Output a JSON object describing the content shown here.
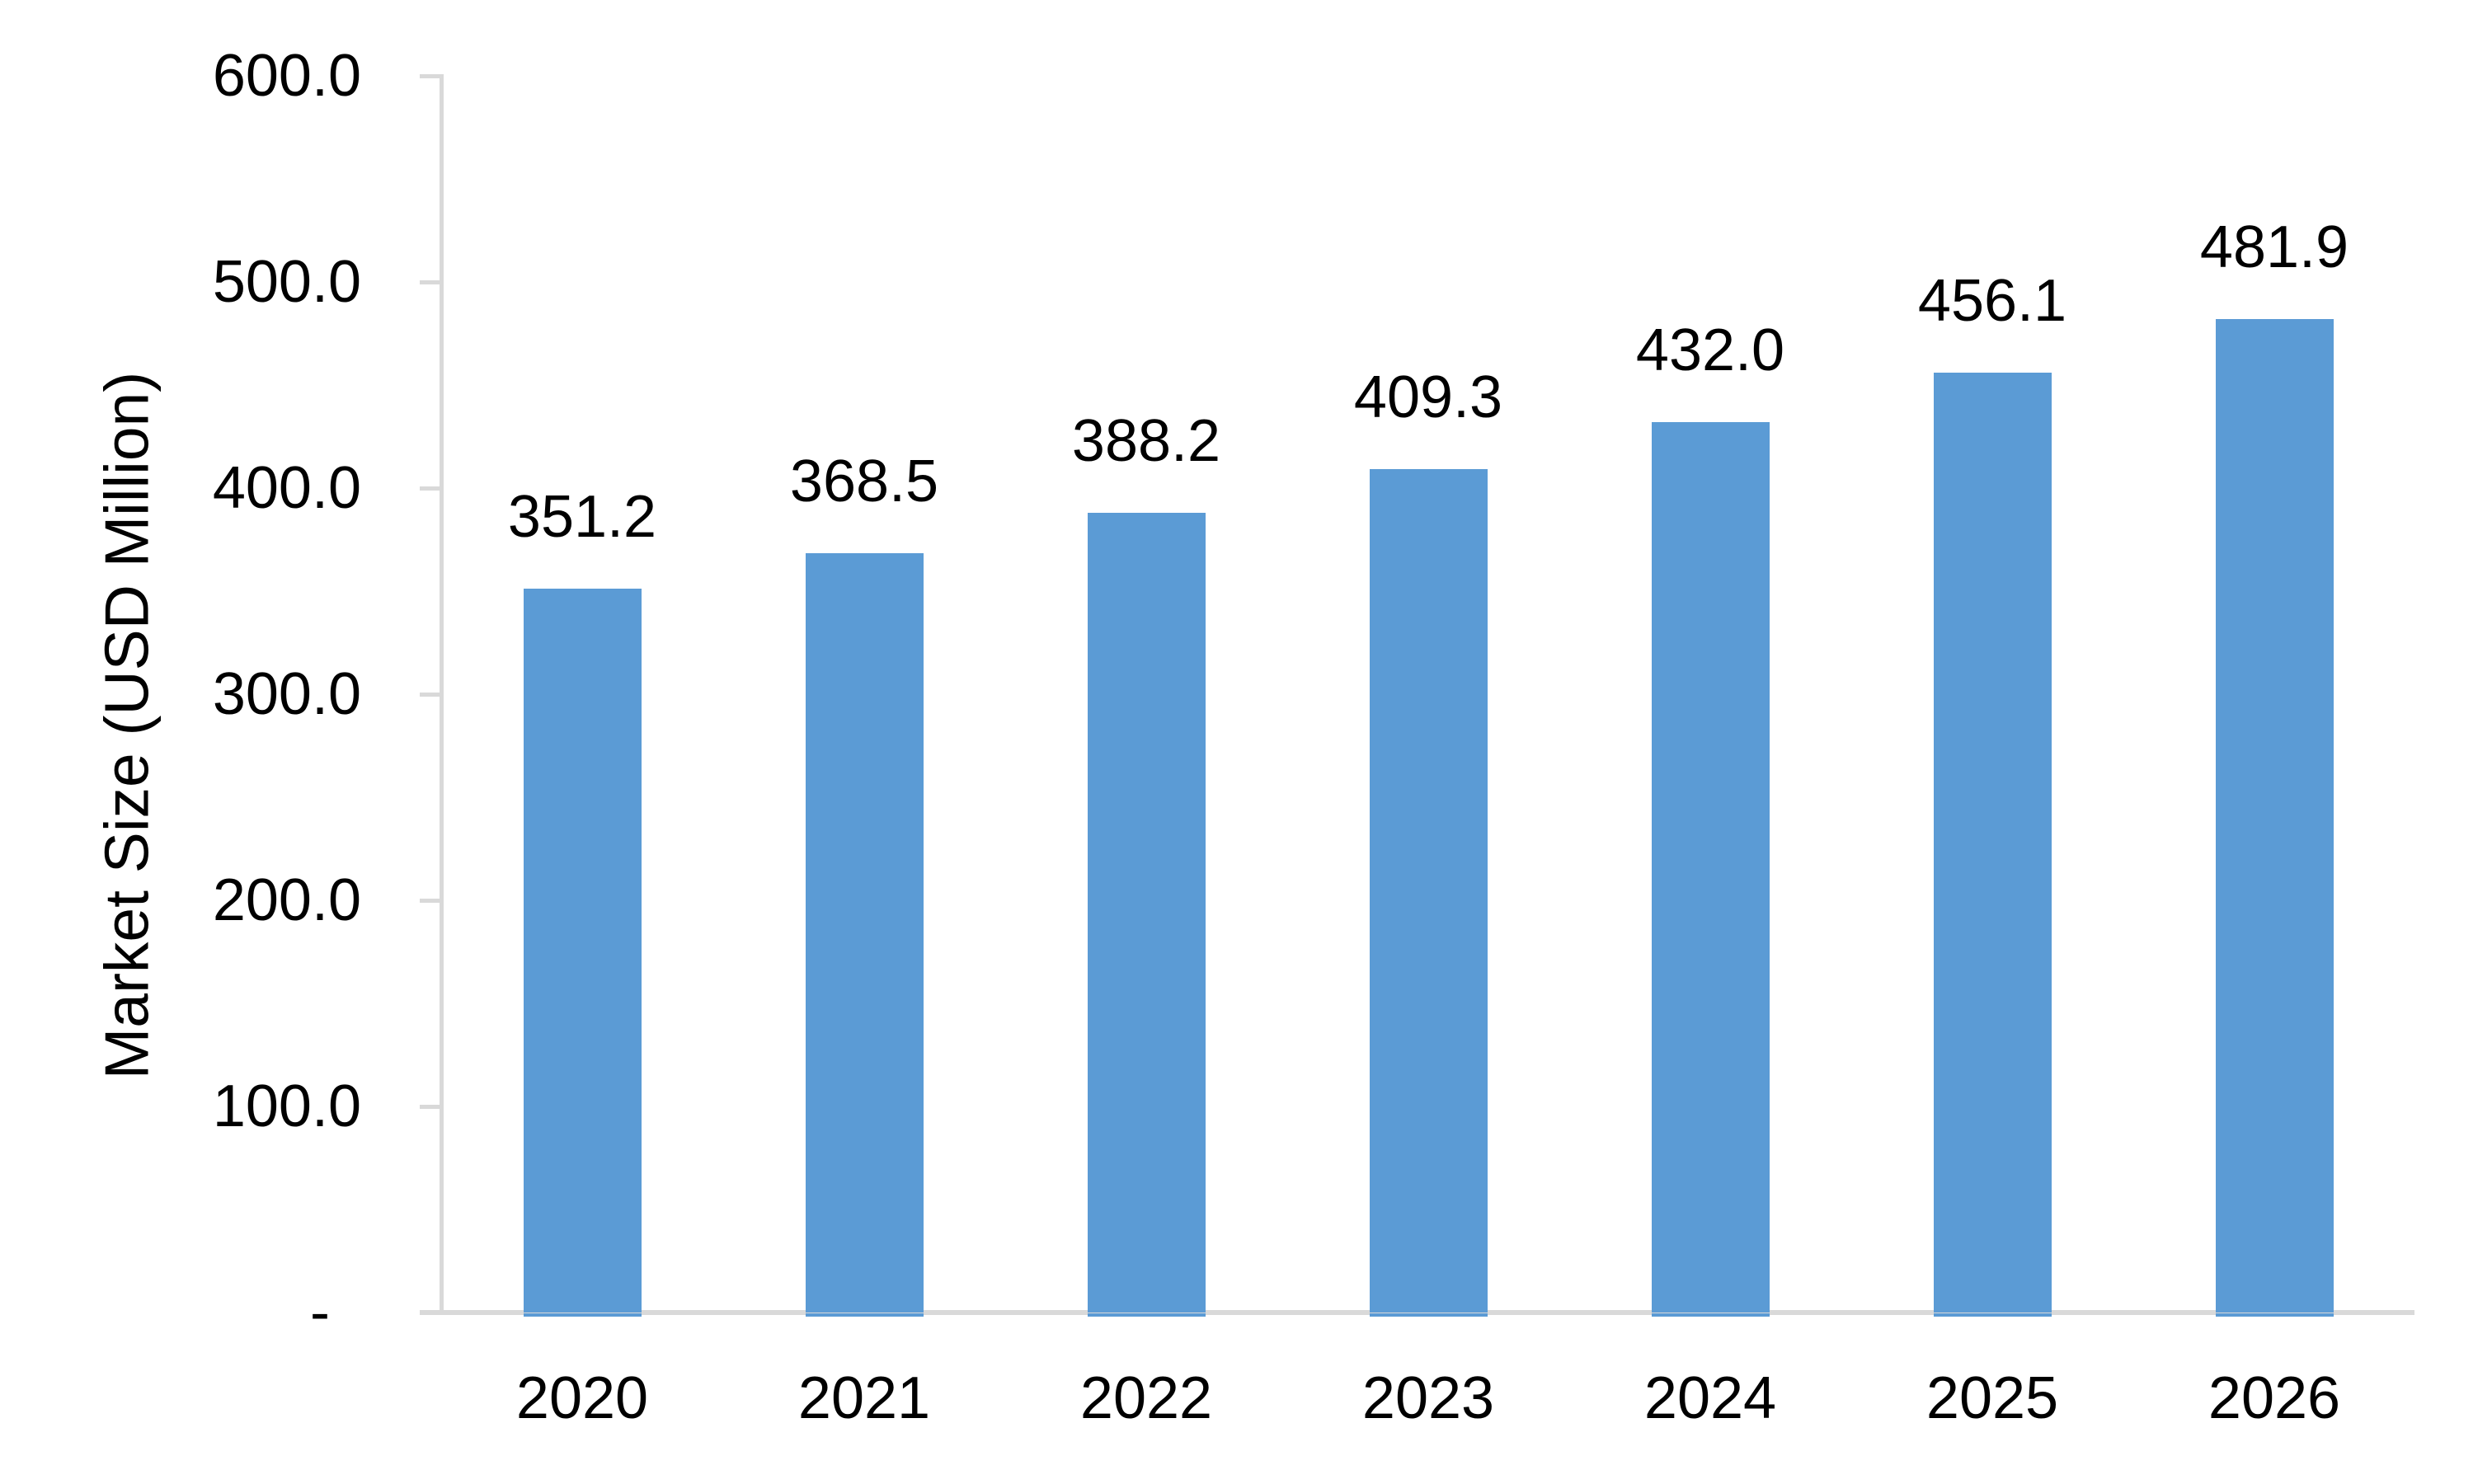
{
  "chart_data": {
    "type": "bar",
    "title": "",
    "xlabel": "",
    "ylabel": "Market Size (USD Million)",
    "categories": [
      "2020",
      "2021",
      "2022",
      "2023",
      "2024",
      "2025",
      "2026"
    ],
    "values": [
      351.2,
      368.5,
      388.2,
      409.3,
      432.0,
      456.1,
      481.9
    ],
    "data_labels": [
      "351.2",
      "368.5",
      "388.2",
      "409.3",
      "432.0",
      "456.1",
      "481.9"
    ],
    "yticks": [
      {
        "label": "600.0",
        "value": 600
      },
      {
        "label": "500.0",
        "value": 500
      },
      {
        "label": "400.0",
        "value": 400
      },
      {
        "label": "300.0",
        "value": 300
      },
      {
        "label": "200.0",
        "value": 200
      },
      {
        "label": "100.0",
        "value": 100
      },
      {
        "label": "-",
        "value": 0
      }
    ],
    "ylim": [
      0,
      600
    ],
    "grid": false,
    "legend_position": "none",
    "colors": {
      "bar": "#5B9BD5",
      "axis": "#D9D9D9",
      "text": "#000000",
      "background": "#FFFFFF"
    }
  }
}
